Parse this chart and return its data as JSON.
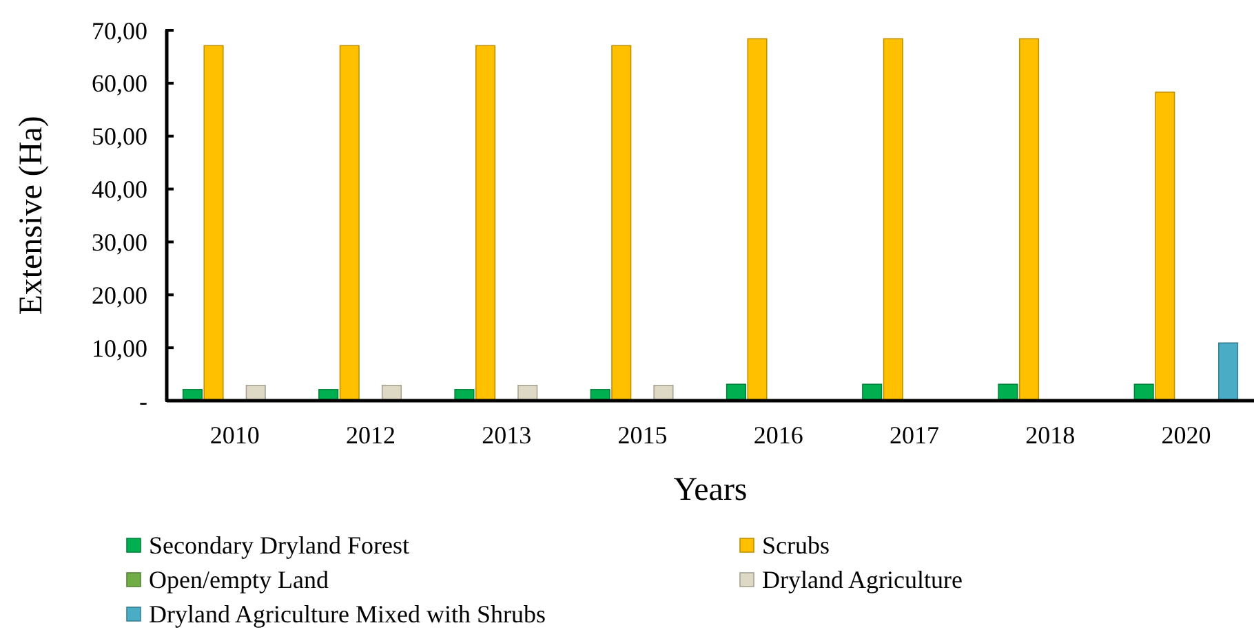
{
  "chart_data": {
    "type": "bar",
    "xlabel": "Years",
    "ylabel": "Extensive (Ha)",
    "categories": [
      "2010",
      "2012",
      "2013",
      "2015",
      "2016",
      "2017",
      "2018",
      "2020"
    ],
    "series": [
      {
        "name": "Secondary Dryland Forest",
        "color": "#00b050",
        "values": [
          2.1,
          2.1,
          2.1,
          2.1,
          3.1,
          3.1,
          3.1,
          3.1
        ]
      },
      {
        "name": "Scrubs",
        "color": "#ffc000",
        "values": [
          67.1,
          67.1,
          67.1,
          67.1,
          68.4,
          68.4,
          68.4,
          58.3
        ]
      },
      {
        "name": "Open/empty Land",
        "color": "#70ad47",
        "values": [
          0,
          0,
          0,
          0,
          0,
          0,
          0,
          0
        ]
      },
      {
        "name": "Dryland Agriculture",
        "color": "#ddd9c4",
        "values": [
          2.9,
          2.9,
          2.9,
          2.9,
          0,
          0,
          0,
          0
        ]
      },
      {
        "name": "Dryland Agriculture Mixed with Shrubs",
        "color": "#4bacc6",
        "values": [
          0,
          0,
          0,
          0,
          0,
          0,
          0,
          10.9
        ]
      }
    ],
    "ylim": [
      0,
      70
    ],
    "yticks": [
      {
        "value": 0,
        "label": "-"
      },
      {
        "value": 10,
        "label": "10,00"
      },
      {
        "value": 20,
        "label": "20,00"
      },
      {
        "value": 30,
        "label": "30,00"
      },
      {
        "value": 40,
        "label": "40,00"
      },
      {
        "value": 50,
        "label": "50,00"
      },
      {
        "value": 60,
        "label": "60,00"
      },
      {
        "value": 70,
        "label": "70,00"
      }
    ],
    "legend": "bottom"
  }
}
